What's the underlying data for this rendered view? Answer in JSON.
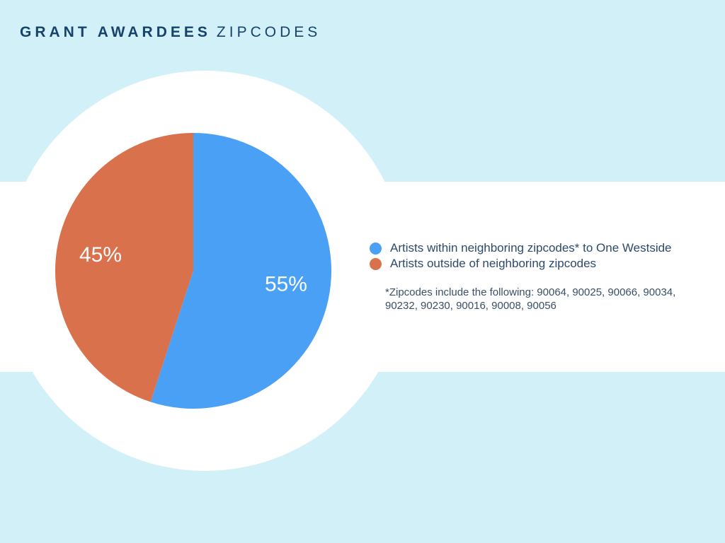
{
  "header": {
    "title_bold": "GRANT AWARDEES",
    "title_light": "ZIPCODES"
  },
  "colors": {
    "within": "#4aa0f5",
    "outside": "#d9714d",
    "background": "#d2f0f8",
    "title": "#16426b"
  },
  "chart_data": {
    "type": "pie",
    "title": "GRANT AWARDEES ZIPCODES",
    "slices": [
      {
        "label": "Artists within neighboring zipcodes* to One Westside",
        "value": 55,
        "display": "55%",
        "color": "#4aa0f5"
      },
      {
        "label": "Artists outside of neighboring zipcodes",
        "value": 45,
        "display": "45%",
        "color": "#d9714d"
      }
    ],
    "legend_position": "right",
    "start_angle": "12 o'clock",
    "direction": "clockwise"
  },
  "legend": {
    "items": [
      {
        "label": "Artists within neighboring zipcodes* to One Westside",
        "color": "#4aa0f5"
      },
      {
        "label": "Artists outside of neighboring zipcodes",
        "color": "#d9714d"
      }
    ]
  },
  "footnote": {
    "text": "*Zipcodes include the following: 90064, 90025, 90066, 90034, 90232, 90230, 90016, 90008, 90056"
  }
}
